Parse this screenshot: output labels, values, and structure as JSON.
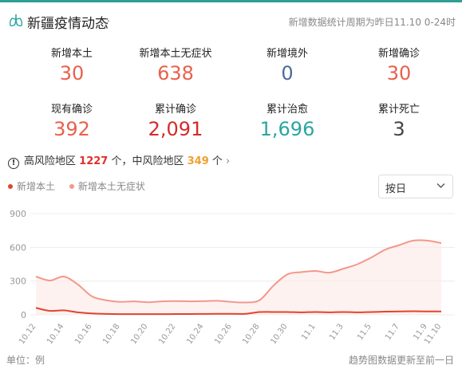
{
  "header": {
    "title": "新疆疫情动态",
    "period": "新增数据统计周期为昨日11.10 0-24时"
  },
  "stats": [
    {
      "label": "新增本土",
      "value": "30",
      "color": "#e8614c"
    },
    {
      "label": "新增本土无症状",
      "value": "638",
      "color": "#e8614c"
    },
    {
      "label": "新增境外",
      "value": "0",
      "color": "#4a6a9a"
    },
    {
      "label": "新增确诊",
      "value": "30",
      "color": "#e8614c"
    },
    {
      "label": "现有确诊",
      "value": "392",
      "color": "#e8614c"
    },
    {
      "label": "累计确诊",
      "value": "2,091",
      "color": "#d42a2a"
    },
    {
      "label": "累计治愈",
      "value": "1,696",
      "color": "#2aa6a0"
    },
    {
      "label": "累计死亡",
      "value": "3",
      "color": "#444444"
    }
  ],
  "risk": {
    "high_label": "高风险地区",
    "high_count": "1227",
    "sep": "个，中风险地区",
    "mid_count": "349",
    "unit": "个"
  },
  "select": {
    "value": "按日"
  },
  "footer": {
    "unit": "单位：例",
    "note": "趋势图数据更新至前一日"
  },
  "chart_data": {
    "type": "line",
    "title": "",
    "xlabel": "",
    "ylabel": "",
    "ylim": [
      0,
      900
    ],
    "yticks": [
      0,
      300,
      600,
      900
    ],
    "grid": true,
    "legend_position": "top-left",
    "x": [
      "10.12",
      "10.13",
      "10.14",
      "10.15",
      "10.16",
      "10.17",
      "10.18",
      "10.19",
      "10.20",
      "10.21",
      "10.22",
      "10.23",
      "10.24",
      "10.25",
      "10.26",
      "10.27",
      "10.28",
      "10.29",
      "10.30",
      "10.31",
      "11.1",
      "11.2",
      "11.3",
      "11.4",
      "11.5",
      "11.6",
      "11.7",
      "11.8",
      "11.9",
      "11.10"
    ],
    "xtick_labels": [
      "10.12",
      "10.14",
      "10.16",
      "10.18",
      "10.20",
      "10.22",
      "10.24",
      "10.26",
      "10.28",
      "10.30",
      "11.1",
      "11.3",
      "11.5",
      "11.7",
      "11.9",
      "11.10"
    ],
    "series": [
      {
        "name": "新增本土",
        "color": "#e0452e",
        "values": [
          62,
          35,
          40,
          22,
          12,
          8,
          6,
          6,
          6,
          6,
          7,
          7,
          8,
          9,
          9,
          9,
          25,
          25,
          25,
          22,
          25,
          22,
          25,
          22,
          25,
          28,
          30,
          32,
          30,
          30
        ]
      },
      {
        "name": "新增本土无症状",
        "color": "#f4978b",
        "values": [
          340,
          305,
          340,
          270,
          165,
          130,
          115,
          120,
          112,
          120,
          122,
          120,
          122,
          125,
          115,
          110,
          130,
          260,
          360,
          380,
          390,
          375,
          410,
          450,
          510,
          580,
          620,
          660,
          660,
          638
        ]
      }
    ]
  }
}
